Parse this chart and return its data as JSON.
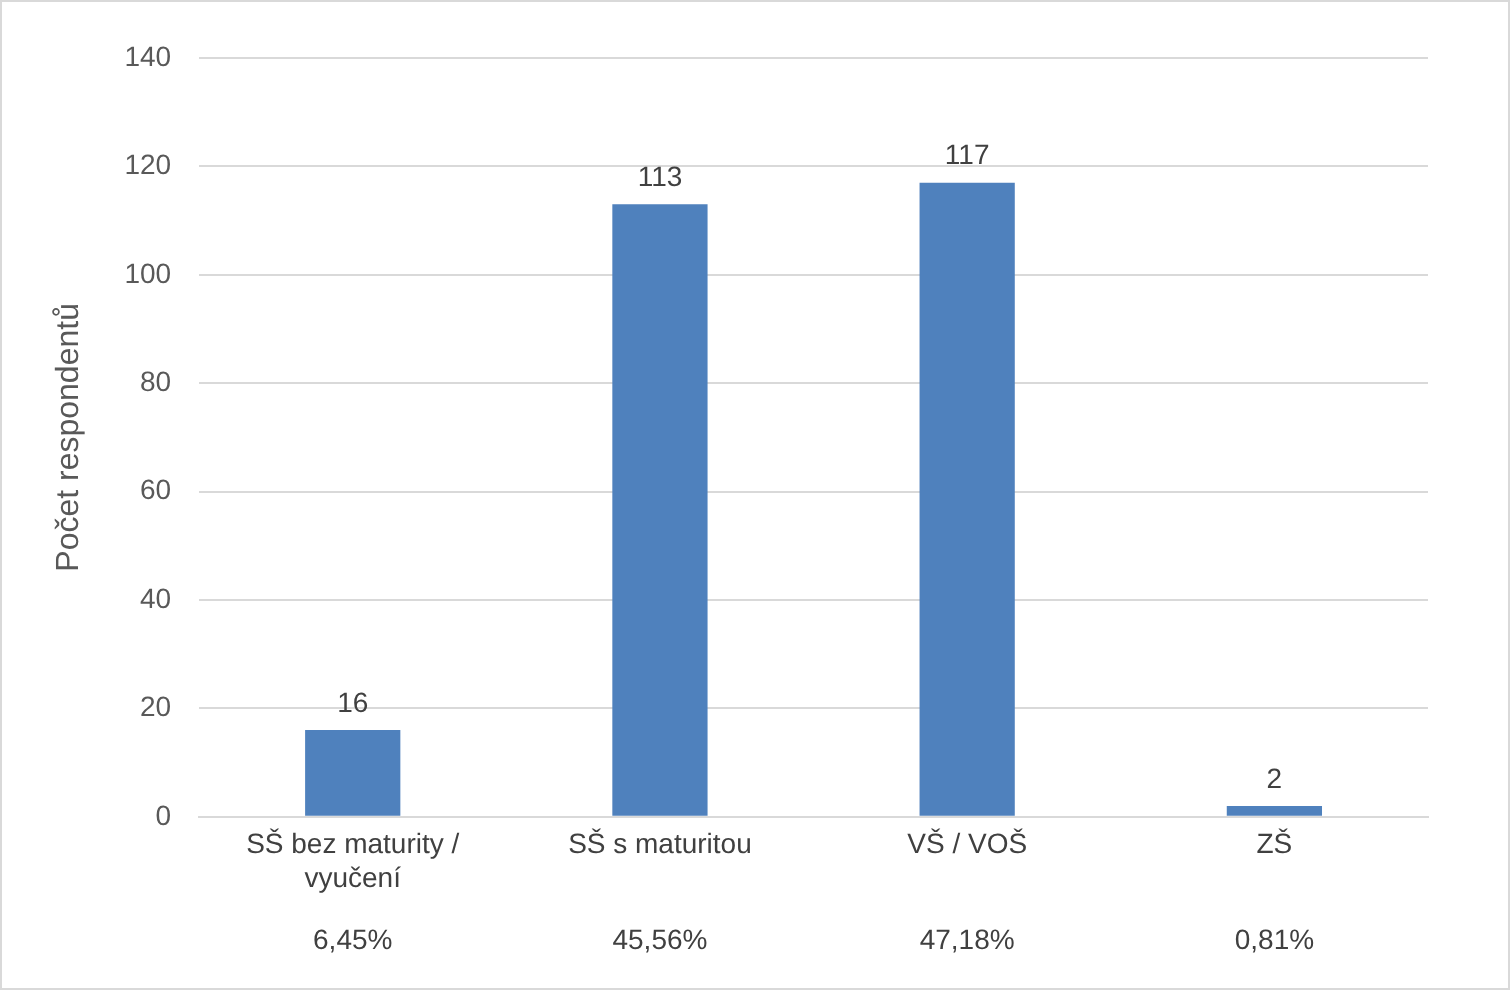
{
  "chart_data": {
    "type": "bar",
    "ylabel": "Počet respondentů",
    "categories": [
      "SŠ bez maturity / vyučení",
      "SŠ s maturitou",
      "VŠ / VOŠ",
      "ZŠ"
    ],
    "values": [
      16,
      113,
      117,
      2
    ],
    "color": "#4f81bd",
    "ylim": [
      0,
      140
    ],
    "yticks": [
      0,
      20,
      40,
      60,
      80,
      100,
      120,
      140
    ],
    "grid": "y",
    "data_labels": true,
    "legend": false,
    "annotations": [
      "6,45%",
      "45,56%",
      "47,18%",
      "0,81%"
    ]
  }
}
